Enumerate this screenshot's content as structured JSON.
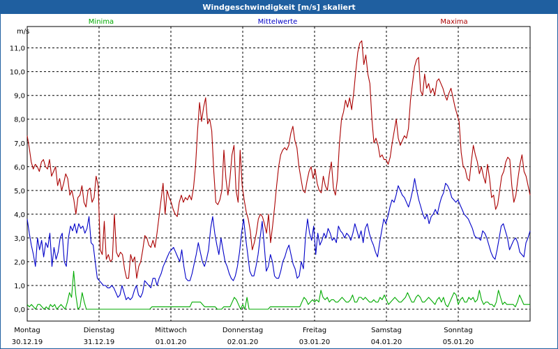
{
  "title": "Windgeschwindigkeit [m/s] skaliert",
  "chart_data": {
    "type": "line",
    "title": "Windgeschwindigkeit [m/s] skaliert",
    "ylabel": "m/s",
    "ylim": [
      -0.5,
      11.9
    ],
    "yticks": [
      "0,0",
      "1,0",
      "2,0",
      "3,0",
      "4,0",
      "5,0",
      "6,0",
      "7,0",
      "8,0",
      "9,0",
      "10,0",
      "11,0"
    ],
    "xlim": [
      0,
      7
    ],
    "days": [
      {
        "weekday": "Montag",
        "date": "30.12.19"
      },
      {
        "weekday": "Dienstag",
        "date": "31.12.19"
      },
      {
        "weekday": "Mittwoch",
        "date": "01.01.20"
      },
      {
        "weekday": "Donnerstag",
        "date": "02.01.20"
      },
      {
        "weekday": "Freitag",
        "date": "03.01.20"
      },
      {
        "weekday": "Samstag",
        "date": "04.01.20"
      },
      {
        "weekday": "Sonntag",
        "date": "05.01.20"
      }
    ],
    "grid": true,
    "series": [
      {
        "name": "Minima",
        "color": "#00aa00",
        "values": [
          0.2,
          0.1,
          0.2,
          0.1,
          0.0,
          0.2,
          0.2,
          0.1,
          0.0,
          0.1,
          0.0,
          0.2,
          0.1,
          0.2,
          0.0,
          0.1,
          0.2,
          0.1,
          0.0,
          0.3,
          0.7,
          0.5,
          1.6,
          0.6,
          0.0,
          0.1,
          0.7,
          0.3,
          0.0,
          0.0,
          0.0,
          0.0,
          0.0,
          0.0,
          0.0,
          0.0,
          0.0,
          0.0,
          0.0,
          0.0,
          0.0,
          0.0,
          0.0,
          0.0,
          0.0,
          0.0,
          0.0,
          0.0,
          0.0,
          0.0,
          0.0,
          0.0,
          0.0,
          0.0,
          0.0,
          0.0,
          0.0,
          0.0,
          0.0,
          0.1,
          0.1,
          0.1,
          0.1,
          0.1,
          0.1,
          0.1,
          0.1,
          0.1,
          0.1,
          0.1,
          0.1,
          0.1,
          0.1,
          0.1,
          0.1,
          0.1,
          0.1,
          0.1,
          0.3,
          0.3,
          0.3,
          0.3,
          0.3,
          0.2,
          0.1,
          0.1,
          0.1,
          0.1,
          0.1,
          0.1,
          0.0,
          0.0,
          0.0,
          0.1,
          0.1,
          0.1,
          0.1,
          0.3,
          0.5,
          0.4,
          0.2,
          0.0,
          0.2,
          0.0,
          0.5,
          0.0,
          0.0,
          0.0,
          0.0,
          0.0,
          0.0,
          0.0,
          0.0,
          0.0,
          0.0,
          0.1,
          0.1,
          0.1,
          0.1,
          0.1,
          0.1,
          0.1,
          0.1,
          0.1,
          0.1,
          0.1,
          0.1,
          0.1,
          0.1,
          0.1,
          0.3,
          0.5,
          0.4,
          0.2,
          0.3,
          0.4,
          0.3,
          0.4,
          0.3,
          0.8,
          0.5,
          0.4,
          0.5,
          0.3,
          0.4,
          0.4,
          0.3,
          0.3,
          0.4,
          0.5,
          0.4,
          0.3,
          0.3,
          0.4,
          0.6,
          0.3,
          0.3,
          0.5,
          0.5,
          0.4,
          0.5,
          0.4,
          0.3,
          0.3,
          0.4,
          0.3,
          0.3,
          0.5,
          0.4,
          0.6,
          0.4,
          0.2,
          0.3,
          0.4,
          0.5,
          0.4,
          0.3,
          0.3,
          0.4,
          0.5,
          0.7,
          0.5,
          0.3,
          0.3,
          0.5,
          0.6,
          0.5,
          0.3,
          0.3,
          0.4,
          0.5,
          0.4,
          0.3,
          0.2,
          0.4,
          0.5,
          0.3,
          0.5,
          0.2,
          0.1,
          0.3,
          0.5,
          0.7,
          0.6,
          0.2,
          0.4,
          0.5,
          0.3,
          0.3,
          0.5,
          0.4,
          0.5,
          0.3,
          0.4,
          0.8,
          0.4,
          0.2,
          0.3,
          0.3,
          0.2,
          0.2,
          0.1,
          0.3,
          0.8,
          0.5,
          0.2,
          0.3,
          0.2,
          0.2,
          0.2,
          0.2,
          0.1,
          0.3,
          0.6,
          0.4,
          0.2,
          0.2,
          0.2,
          0.2
        ]
      },
      {
        "name": "Mittelwerte",
        "color": "#0000c8",
        "values": [
          3.8,
          3.2,
          2.7,
          2.3,
          1.8,
          3.0,
          2.5,
          2.9,
          2.2,
          2.8,
          2.6,
          3.2,
          1.8,
          2.6,
          2.1,
          2.4,
          3.0,
          3.2,
          2.0,
          1.8,
          3.0,
          3.5,
          3.3,
          3.6,
          3.2,
          3.6,
          3.4,
          3.5,
          3.2,
          3.4,
          3.9,
          2.8,
          2.7,
          2.0,
          1.3,
          1.2,
          1.1,
          1.0,
          1.0,
          0.9,
          0.9,
          1.0,
          0.9,
          0.7,
          0.5,
          0.6,
          1.0,
          0.7,
          0.4,
          0.5,
          0.4,
          0.5,
          0.8,
          1.0,
          0.6,
          0.5,
          0.7,
          1.2,
          1.1,
          1.0,
          0.9,
          1.3,
          1.3,
          1.0,
          1.3,
          1.5,
          1.8,
          2.0,
          2.2,
          2.4,
          2.5,
          2.6,
          2.4,
          2.2,
          2.0,
          2.5,
          1.8,
          1.3,
          1.2,
          1.2,
          1.5,
          1.9,
          2.3,
          2.8,
          2.4,
          2.0,
          1.8,
          2.1,
          2.5,
          3.4,
          3.9,
          3.2,
          2.7,
          2.3,
          3.0,
          2.5,
          2.0,
          1.8,
          1.5,
          1.3,
          1.2,
          1.4,
          1.8,
          2.4,
          3.2,
          3.8,
          3.0,
          2.3,
          1.6,
          1.4,
          1.4,
          1.8,
          2.3,
          3.0,
          3.7,
          2.7,
          1.6,
          1.8,
          2.3,
          2.0,
          1.4,
          1.3,
          1.3,
          1.6,
          2.0,
          2.2,
          2.5,
          2.7,
          2.3,
          1.9,
          1.7,
          1.3,
          1.4,
          2.0,
          1.7,
          3.0,
          3.8,
          3.2,
          2.9,
          3.5,
          2.3,
          3.2,
          2.7,
          2.9,
          3.2,
          3.0,
          3.4,
          3.2,
          2.9,
          3.0,
          2.8,
          3.5,
          3.3,
          3.2,
          3.0,
          3.2,
          3.1,
          2.9,
          3.2,
          3.6,
          3.3,
          3.0,
          3.3,
          2.8,
          3.4,
          3.6,
          3.2,
          2.9,
          2.7,
          2.4,
          2.2,
          2.8,
          3.3,
          3.8,
          3.6,
          3.9,
          4.3,
          4.6,
          4.5,
          4.8,
          5.2,
          5.0,
          4.8,
          4.7,
          4.5,
          4.3,
          4.6,
          5.0,
          5.5,
          5.0,
          4.6,
          4.3,
          4.0,
          3.8,
          4.0,
          3.6,
          3.9,
          4.0,
          4.2,
          4.0,
          4.4,
          4.7,
          4.9,
          5.3,
          5.2,
          5.0,
          4.7,
          4.6,
          4.5,
          4.6,
          4.4,
          4.2,
          4.0,
          3.9,
          3.8,
          3.6,
          3.4,
          3.1,
          3.0,
          3.0,
          2.9,
          3.3,
          3.2,
          3.0,
          2.7,
          2.4,
          2.2,
          2.1,
          2.5,
          3.0,
          3.5,
          3.6,
          3.3,
          3.0,
          2.5,
          2.7,
          2.9,
          3.0,
          2.8,
          2.4,
          2.3,
          2.2,
          2.8,
          3.0,
          3.3
        ]
      },
      {
        "name": "Maxima",
        "color": "#aa0000",
        "values": [
          7.3,
          6.8,
          6.2,
          5.9,
          6.1,
          6.0,
          5.8,
          6.2,
          6.3,
          6.0,
          5.9,
          6.3,
          5.6,
          5.8,
          6.0,
          5.2,
          5.5,
          5.0,
          5.3,
          5.7,
          5.5,
          4.8,
          5.0,
          4.6,
          4.0,
          4.7,
          4.8,
          5.2,
          4.5,
          4.3,
          5.0,
          5.1,
          4.5,
          4.7,
          5.6,
          5.2,
          2.5,
          2.3,
          3.7,
          2.1,
          2.3,
          2.0,
          2.1,
          4.0,
          2.4,
          2.2,
          2.4,
          2.3,
          1.7,
          1.3,
          1.3,
          2.3,
          2.0,
          2.2,
          1.3,
          1.8,
          2.0,
          2.5,
          3.1,
          3.0,
          2.7,
          2.6,
          2.9,
          2.6,
          3.2,
          3.9,
          4.6,
          5.3,
          4.0,
          5.0,
          4.7,
          4.5,
          4.2,
          4.0,
          3.9,
          4.5,
          4.8,
          4.5,
          4.7,
          4.6,
          4.8,
          4.6,
          5.1,
          6.0,
          7.5,
          8.7,
          7.9,
          8.5,
          8.9,
          7.8,
          8.0,
          7.5,
          5.8,
          4.5,
          4.4,
          4.6,
          5.0,
          6.7,
          5.5,
          4.8,
          5.5,
          6.5,
          6.9,
          5.0,
          4.5,
          6.7,
          5.2,
          4.6,
          4.1,
          3.8,
          3.3,
          2.5,
          2.8,
          3.2,
          3.8,
          4.0,
          3.9,
          3.6,
          3.2,
          4.0,
          2.8,
          3.5,
          4.3,
          5.2,
          6.0,
          6.5,
          6.7,
          6.8,
          6.7,
          6.9,
          7.4,
          7.7,
          7.1,
          6.8,
          6.0,
          5.5,
          5.0,
          4.9,
          5.4,
          5.8,
          6.0,
          5.5,
          5.9,
          5.3,
          5.0,
          4.9,
          5.6,
          5.2,
          5.0,
          5.7,
          6.2,
          5.1,
          4.8,
          5.5,
          7.0,
          8.0,
          8.3,
          8.8,
          8.5,
          8.9,
          8.4,
          9.1,
          10.0,
          10.8,
          11.2,
          11.3,
          10.3,
          10.7,
          9.9,
          9.5,
          8.0,
          7.0,
          7.2,
          6.9,
          6.4,
          6.5,
          6.3,
          6.3,
          6.1,
          6.4,
          7.0,
          7.5,
          8.0,
          7.2,
          6.9,
          7.1,
          7.3,
          7.2,
          7.6,
          8.8,
          9.5,
          10.2,
          10.5,
          10.6,
          9.2,
          9.0,
          9.9,
          9.3,
          9.5,
          9.1,
          9.3,
          9.0,
          9.6,
          9.7,
          9.5,
          9.3,
          9.0,
          8.8,
          9.1,
          9.3,
          8.9,
          8.5,
          8.2,
          7.9,
          6.6,
          6.0,
          5.9,
          5.5,
          5.4,
          6.2,
          6.9,
          6.5,
          6.2,
          5.7,
          6.0,
          5.6,
          5.3,
          6.1,
          5.5,
          4.7,
          4.8,
          4.2,
          4.4,
          5.0,
          5.6,
          5.8,
          6.2,
          6.4,
          6.3,
          5.2,
          4.5,
          4.8,
          5.5,
          6.1,
          6.5,
          5.8,
          5.6,
          5.2,
          4.8
        ]
      }
    ]
  }
}
